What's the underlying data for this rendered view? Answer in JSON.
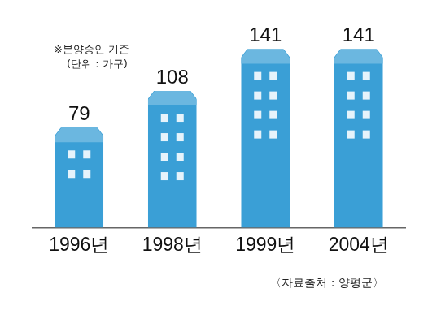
{
  "chart_data": {
    "type": "bar",
    "categories": [
      "1996년",
      "1998년",
      "1999년",
      "2004년"
    ],
    "values": [
      79,
      108,
      141,
      141
    ],
    "color": "#3a9fd6",
    "ylim": [
      0,
      160
    ],
    "grid": false,
    "data_labels": true,
    "tick_labels": "x",
    "annotations": [
      "※분양승인 기준",
      "(단위 : 가구)",
      "〈자료출처 : 양평군〉"
    ]
  }
}
